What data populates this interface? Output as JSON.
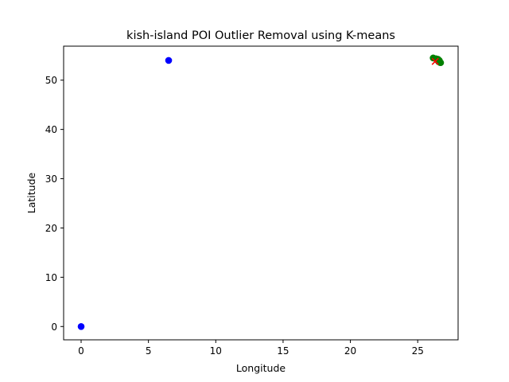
{
  "chart_data": {
    "type": "scatter",
    "title": "kish-island POI Outlier Removal using K-means",
    "xlabel": "Longitude",
    "ylabel": "Latitude",
    "xlim": [
      -1.3,
      28.0
    ],
    "ylim": [
      -2.7,
      56.9
    ],
    "xticks": [
      0,
      5,
      10,
      15,
      20,
      25
    ],
    "yticks": [
      0,
      10,
      20,
      30,
      40,
      50
    ],
    "grid": false,
    "series": [
      {
        "marker": "circle",
        "color": "#0000ff",
        "points": [
          [
            0.0,
            0.0
          ],
          [
            6.5,
            54.0
          ]
        ]
      },
      {
        "marker": "circle",
        "color": "#008000",
        "points": [
          [
            26.15,
            54.5
          ],
          [
            26.35,
            54.35
          ],
          [
            26.5,
            54.25
          ],
          [
            26.6,
            54.0
          ],
          [
            26.55,
            53.75
          ],
          [
            26.65,
            53.6
          ],
          [
            26.7,
            53.55
          ],
          [
            26.45,
            54.1
          ]
        ]
      },
      {
        "marker": "x",
        "color": "#ff0000",
        "points": [
          [
            26.3,
            53.8
          ]
        ]
      }
    ]
  }
}
